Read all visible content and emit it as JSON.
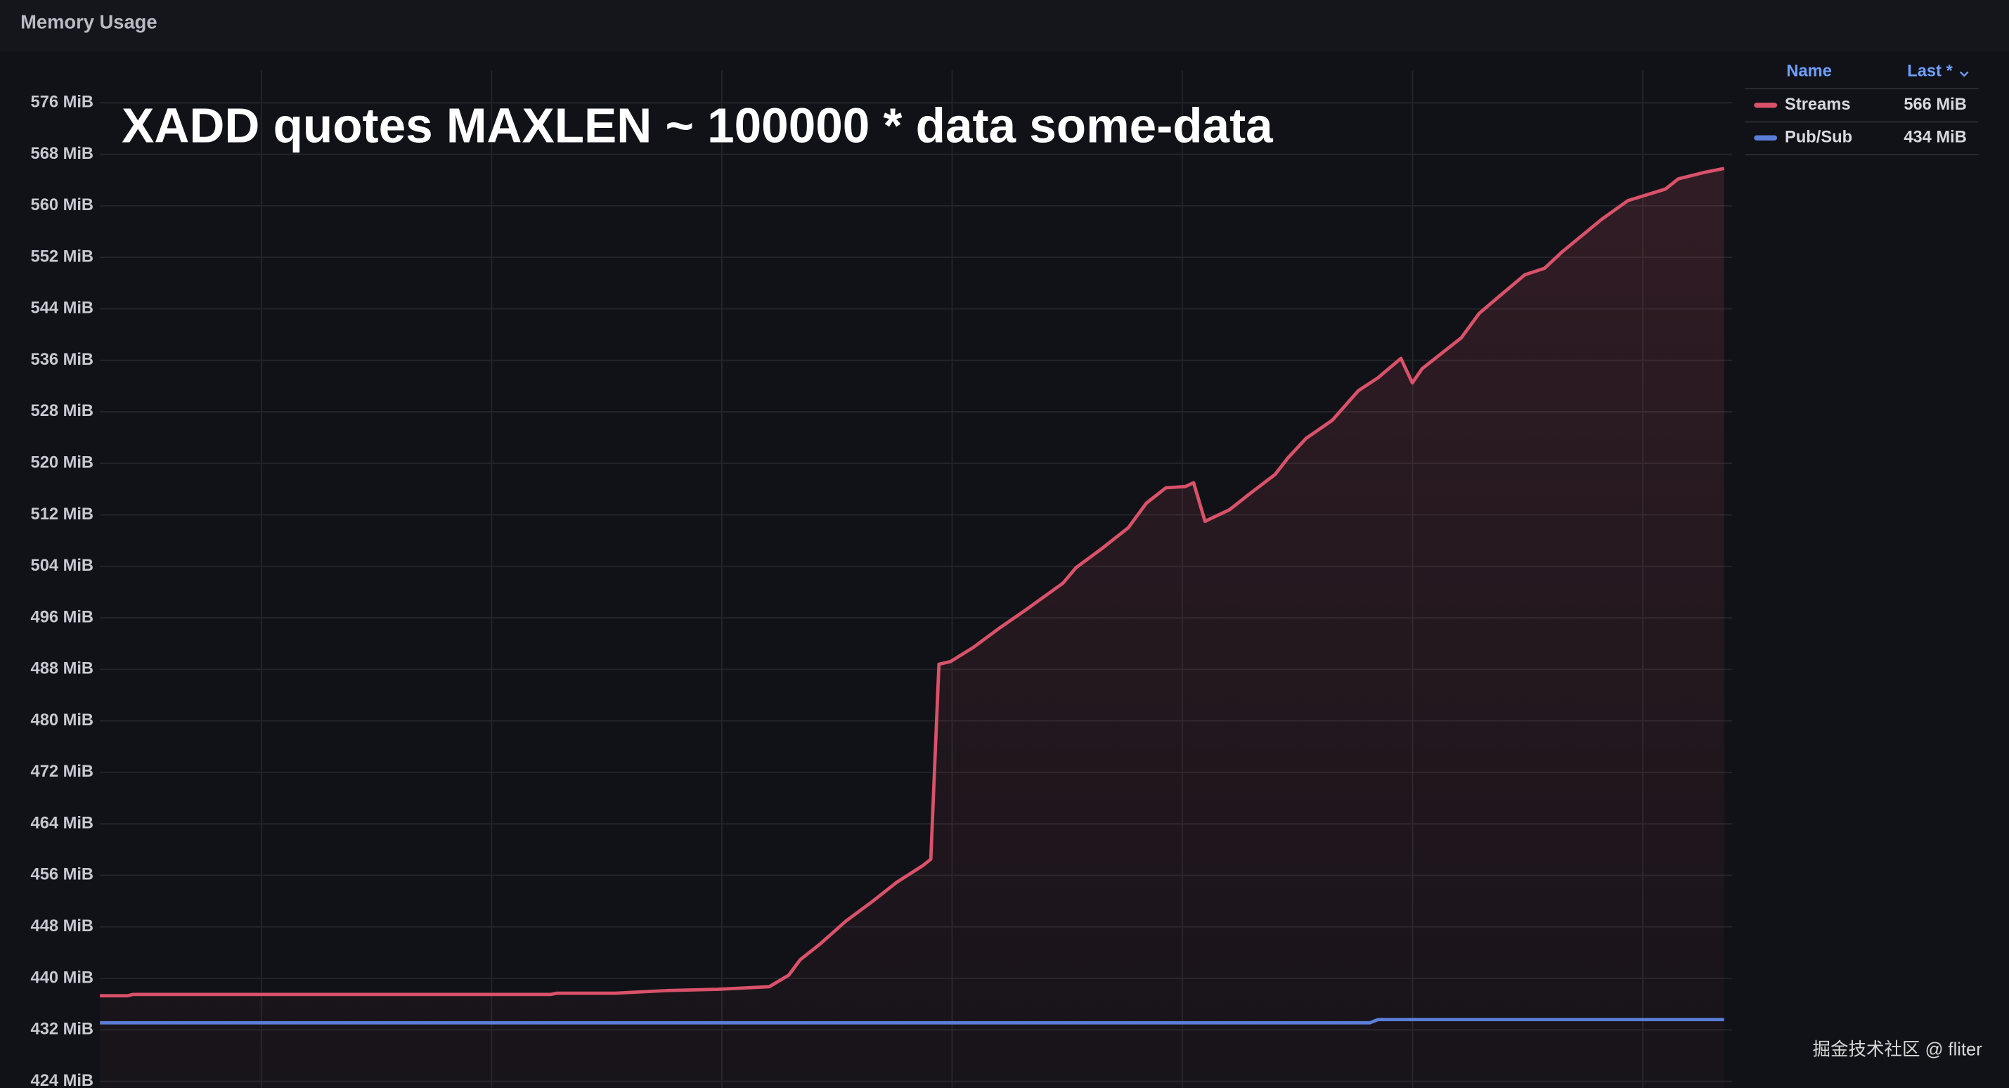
{
  "chart_data": {
    "type": "line",
    "title": "Memory Usage",
    "annotation": "XADD quotes MAXLEN ~ 100000 * data some-data",
    "watermark": "掘金技术社区 @ fliter",
    "legend_header": [
      "Name",
      "Last *"
    ],
    "xlim": [
      0,
      100
    ],
    "ylim": [
      423,
      581
    ],
    "yticks": [
      {
        "value": 424,
        "label": "424 MiB"
      },
      {
        "value": 432,
        "label": "432 MiB"
      },
      {
        "value": 440,
        "label": "440 MiB"
      },
      {
        "value": 448,
        "label": "448 MiB"
      },
      {
        "value": 456,
        "label": "456 MiB"
      },
      {
        "value": 464,
        "label": "464 MiB"
      },
      {
        "value": 472,
        "label": "472 MiB"
      },
      {
        "value": 480,
        "label": "480 MiB"
      },
      {
        "value": 488,
        "label": "488 MiB"
      },
      {
        "value": 496,
        "label": "496 MiB"
      },
      {
        "value": 504,
        "label": "504 MiB"
      },
      {
        "value": 512,
        "label": "512 MiB"
      },
      {
        "value": 520,
        "label": "520 MiB"
      },
      {
        "value": 528,
        "label": "528 MiB"
      },
      {
        "value": 536,
        "label": "536 MiB"
      },
      {
        "value": 544,
        "label": "544 MiB"
      },
      {
        "value": 552,
        "label": "552 MiB"
      },
      {
        "value": 560,
        "label": "560 MiB"
      },
      {
        "value": 568,
        "label": "568 MiB"
      },
      {
        "value": 576,
        "label": "576 MiB"
      }
    ],
    "grid": true,
    "series": [
      {
        "name": "Streams",
        "color": "#d9526a",
        "legend_value": "566 MiB",
        "fill": true,
        "x": [
          0,
          1.7,
          2.0,
          27.6,
          28.0,
          31.6,
          34.7,
          37.8,
          41.0,
          42.2,
          42.9,
          44.1,
          45.7,
          47.3,
          48.8,
          50.4,
          50.9,
          51.4,
          52.1,
          53.5,
          55.1,
          56.7,
          59.0,
          59.8,
          61.4,
          63.0,
          64.1,
          65.3,
          66.5,
          67.0,
          67.7,
          69.2,
          70.4,
          72.0,
          72.8,
          73.9,
          75.5,
          77.1,
          78.3,
          79.7,
          80.4,
          81.0,
          82.2,
          83.4,
          84.5,
          85.7,
          87.3,
          88.5,
          89.6,
          92.0,
          93.6,
          95.9,
          96.7,
          98.3,
          99.5
        ],
        "values": [
          437.3,
          437.3,
          437.5,
          437.5,
          437.7,
          437.7,
          438.1,
          438.3,
          438.7,
          440.5,
          442.9,
          445.3,
          448.9,
          451.9,
          454.9,
          457.5,
          458.5,
          488.8,
          489.2,
          491.4,
          494.4,
          497.2,
          501.4,
          503.8,
          506.8,
          510.0,
          513.8,
          516.2,
          516.4,
          517.0,
          511.0,
          512.8,
          515.2,
          518.3,
          520.9,
          523.9,
          526.7,
          531.3,
          533.3,
          536.3,
          532.5,
          534.7,
          537.1,
          539.5,
          543.3,
          545.9,
          549.3,
          550.3,
          552.9,
          557.9,
          560.8,
          562.6,
          564.2,
          565.2,
          565.8
        ]
      },
      {
        "name": "Pub/Sub",
        "color": "#5b7fd9",
        "legend_value": "434 MiB",
        "fill": false,
        "x": [
          0,
          77.8,
          78.3,
          99.5
        ],
        "values": [
          433.1,
          433.1,
          433.6,
          433.6
        ]
      }
    ]
  }
}
